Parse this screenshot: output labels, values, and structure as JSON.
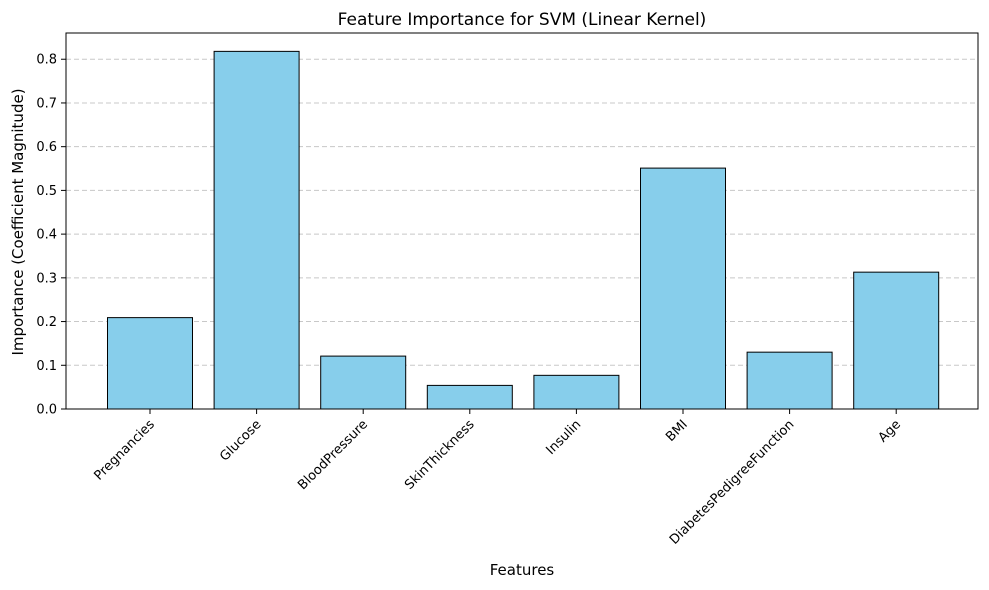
{
  "chart_data": {
    "type": "bar",
    "title": "Feature Importance for SVM (Linear Kernel)",
    "xlabel": "Features",
    "ylabel": "Importance (Coefficient Magnitude)",
    "categories": [
      "Pregnancies",
      "Glucose",
      "BloodPressure",
      "SkinThickness",
      "Insulin",
      "BMI",
      "DiabetesPedigreeFunction",
      "Age"
    ],
    "values": [
      0.209,
      0.818,
      0.121,
      0.054,
      0.077,
      0.551,
      0.13,
      0.313
    ],
    "ylim": [
      0,
      0.86
    ],
    "yticks": [
      0.0,
      0.1,
      0.2,
      0.3,
      0.4,
      0.5,
      0.6,
      0.7,
      0.8
    ],
    "ytick_labels": [
      "0.0",
      "0.1",
      "0.2",
      "0.3",
      "0.4",
      "0.5",
      "0.6",
      "0.7",
      "0.8"
    ],
    "grid": "y-dashed",
    "colors": {
      "bar_fill": "#87CEEB",
      "bar_edge": "#000000",
      "grid": "#c8c8c8"
    }
  }
}
